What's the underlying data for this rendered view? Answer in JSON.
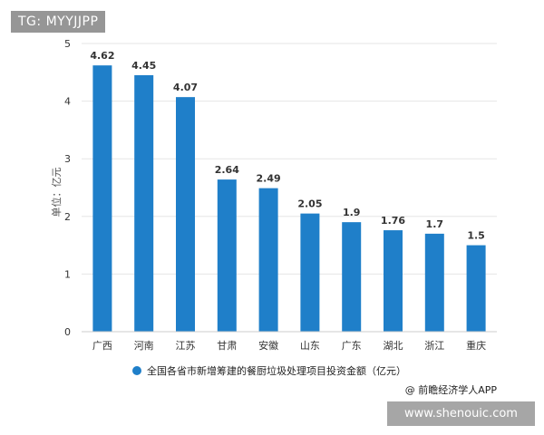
{
  "watermark_tag": "TG: MYYJJPP",
  "site_label": "www.shenouic.com",
  "source_note": "@ 前瞻经济学人APP",
  "chart_data": {
    "type": "bar",
    "title": "",
    "xlabel": "",
    "ylabel": "单位：亿元",
    "ylim": [
      0,
      5
    ],
    "yticks": [
      0,
      1,
      2,
      3,
      4,
      5
    ],
    "grid": true,
    "legend_position": "bottom",
    "categories": [
      "广西",
      "河南",
      "江苏",
      "甘肃",
      "安徽",
      "山东",
      "广东",
      "湖北",
      "浙江",
      "重庆"
    ],
    "series": [
      {
        "name": "全国各省市新增筹建的餐厨垃圾处理项目投资金额（亿元）",
        "values": [
          4.62,
          4.45,
          4.07,
          2.64,
          2.49,
          2.05,
          1.9,
          1.76,
          1.7,
          1.5
        ],
        "labels": [
          "4.62",
          "4.45",
          "4.07",
          "2.64",
          "2.49",
          "2.05",
          "1.9",
          "1.76",
          "1.7",
          "1.5"
        ],
        "color": "#1f7fc9"
      }
    ],
    "axis_color": "#cccccc",
    "grid_color": "#e6e6e6"
  }
}
